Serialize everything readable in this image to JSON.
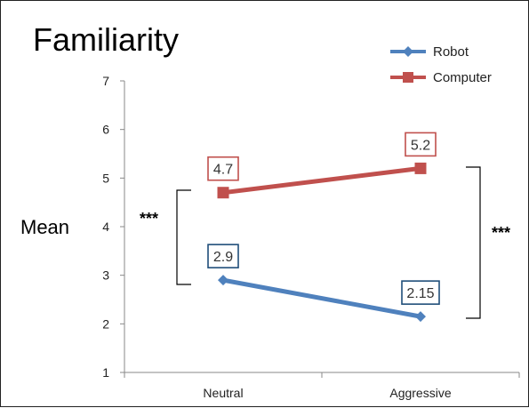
{
  "chart_data": {
    "type": "line",
    "title": "Familiarity",
    "ylabel": "Mean",
    "xlabel": "",
    "categories": [
      "Neutral",
      "Aggressive"
    ],
    "ylim": [
      1,
      7
    ],
    "yticks": [
      "1",
      "2",
      "3",
      "4",
      "5",
      "6",
      "7"
    ],
    "grid": false,
    "legend_position": "top-right",
    "series": [
      {
        "name": "Robot",
        "values": [
          2.9,
          2.15
        ],
        "labels": [
          "2.9",
          "2.15"
        ],
        "color": "#4f81bd",
        "marker": "diamond",
        "label_border": "#1f4e79"
      },
      {
        "name": "Computer",
        "values": [
          4.7,
          5.2
        ],
        "labels": [
          "4.7",
          "5.2"
        ],
        "color": "#c0504d",
        "marker": "square",
        "label_border": "#c0504d"
      }
    ],
    "annotations": {
      "left_bracket": "***",
      "right_bracket": "***"
    }
  }
}
